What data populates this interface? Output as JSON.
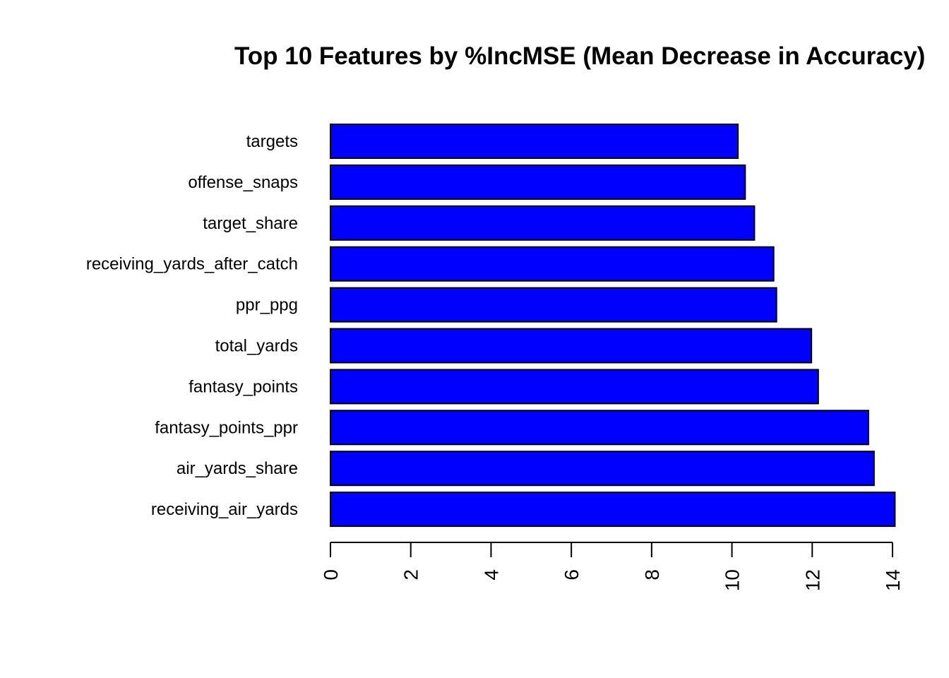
{
  "chart_data": {
    "type": "bar",
    "orientation": "horizontal",
    "title": "Top 10 Features by %IncMSE (Mean Decrease in Accuracy)",
    "xlabel": "",
    "ylabel": "",
    "categories": [
      "targets",
      "offense_snaps",
      "target_share",
      "receiving_yards_after_catch",
      "ppr_ppg",
      "total_yards",
      "fantasy_points",
      "fantasy_points_ppr",
      "air_yards_share",
      "receiving_air_yards"
    ],
    "values": [
      10.15,
      10.33,
      10.56,
      11.04,
      11.11,
      11.98,
      12.15,
      13.4,
      13.54,
      14.06
    ],
    "xlim": [
      0,
      14
    ],
    "ticks": [
      0,
      2,
      4,
      6,
      8,
      10,
      12,
      14
    ],
    "bar_color": "#0000ff",
    "grid": false,
    "legend": "none"
  }
}
